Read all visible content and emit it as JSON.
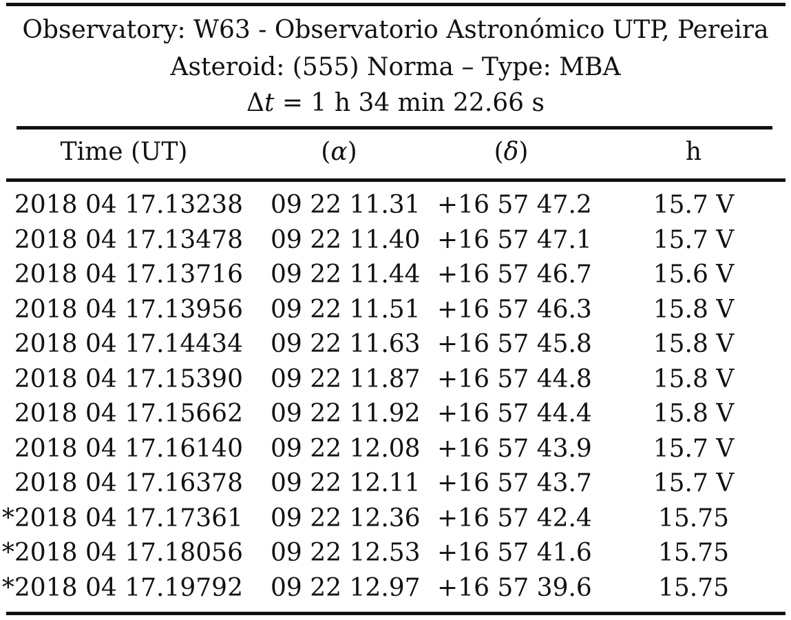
{
  "caption": {
    "observatory": "Observatory: W63 - Observatorio Astronómico UTP, Pereira",
    "asteroid": "Asteroid: (555) Norma – Type: MBA",
    "delta_t_symbol": "Δt",
    "delta_t_value": " = 1 h 34 min 22.66 s"
  },
  "table": {
    "headers": {
      "time": "Time (UT)",
      "alpha": "(α)",
      "delta": "(δ)",
      "magnitude": "h"
    },
    "rows": [
      {
        "time": "2018 04 17.13238",
        "alpha": "09 22 11.31",
        "delta": "+16 57 47.2",
        "mag": "15.7 V"
      },
      {
        "time": "2018 04 17.13478",
        "alpha": "09 22 11.40",
        "delta": "+16 57 47.1",
        "mag": "15.7 V"
      },
      {
        "time": "2018 04 17.13716",
        "alpha": "09 22 11.44",
        "delta": "+16 57 46.7",
        "mag": "15.6 V"
      },
      {
        "time": "2018 04 17.13956",
        "alpha": "09 22 11.51",
        "delta": "+16 57 46.3",
        "mag": "15.8 V"
      },
      {
        "time": "2018 04 17.14434",
        "alpha": "09 22 11.63",
        "delta": "+16 57 45.8",
        "mag": "15.8 V"
      },
      {
        "time": "2018 04 17.15390",
        "alpha": "09 22 11.87",
        "delta": "+16 57 44.8",
        "mag": "15.8 V"
      },
      {
        "time": "2018 04 17.15662",
        "alpha": "09 22 11.92",
        "delta": "+16 57 44.4",
        "mag": "15.8 V"
      },
      {
        "time": "2018 04 17.16140",
        "alpha": "09 22 12.08",
        "delta": "+16 57 43.9",
        "mag": "15.7 V"
      },
      {
        "time": "2018 04 17.16378",
        "alpha": "09 22 12.11",
        "delta": "+16 57 43.7",
        "mag": "15.7 V"
      },
      {
        "time": "*2018 04 17.17361",
        "alpha": "09 22 12.36",
        "delta": "+16 57 42.4",
        "mag": "15.75"
      },
      {
        "time": "*2018 04 17.18056",
        "alpha": "09 22 12.53",
        "delta": "+16 57 41.6",
        "mag": "15.75"
      },
      {
        "time": "*2018 04 17.19792",
        "alpha": "09 22 12.97",
        "delta": "+16 57 39.6",
        "mag": "15.75"
      }
    ]
  }
}
